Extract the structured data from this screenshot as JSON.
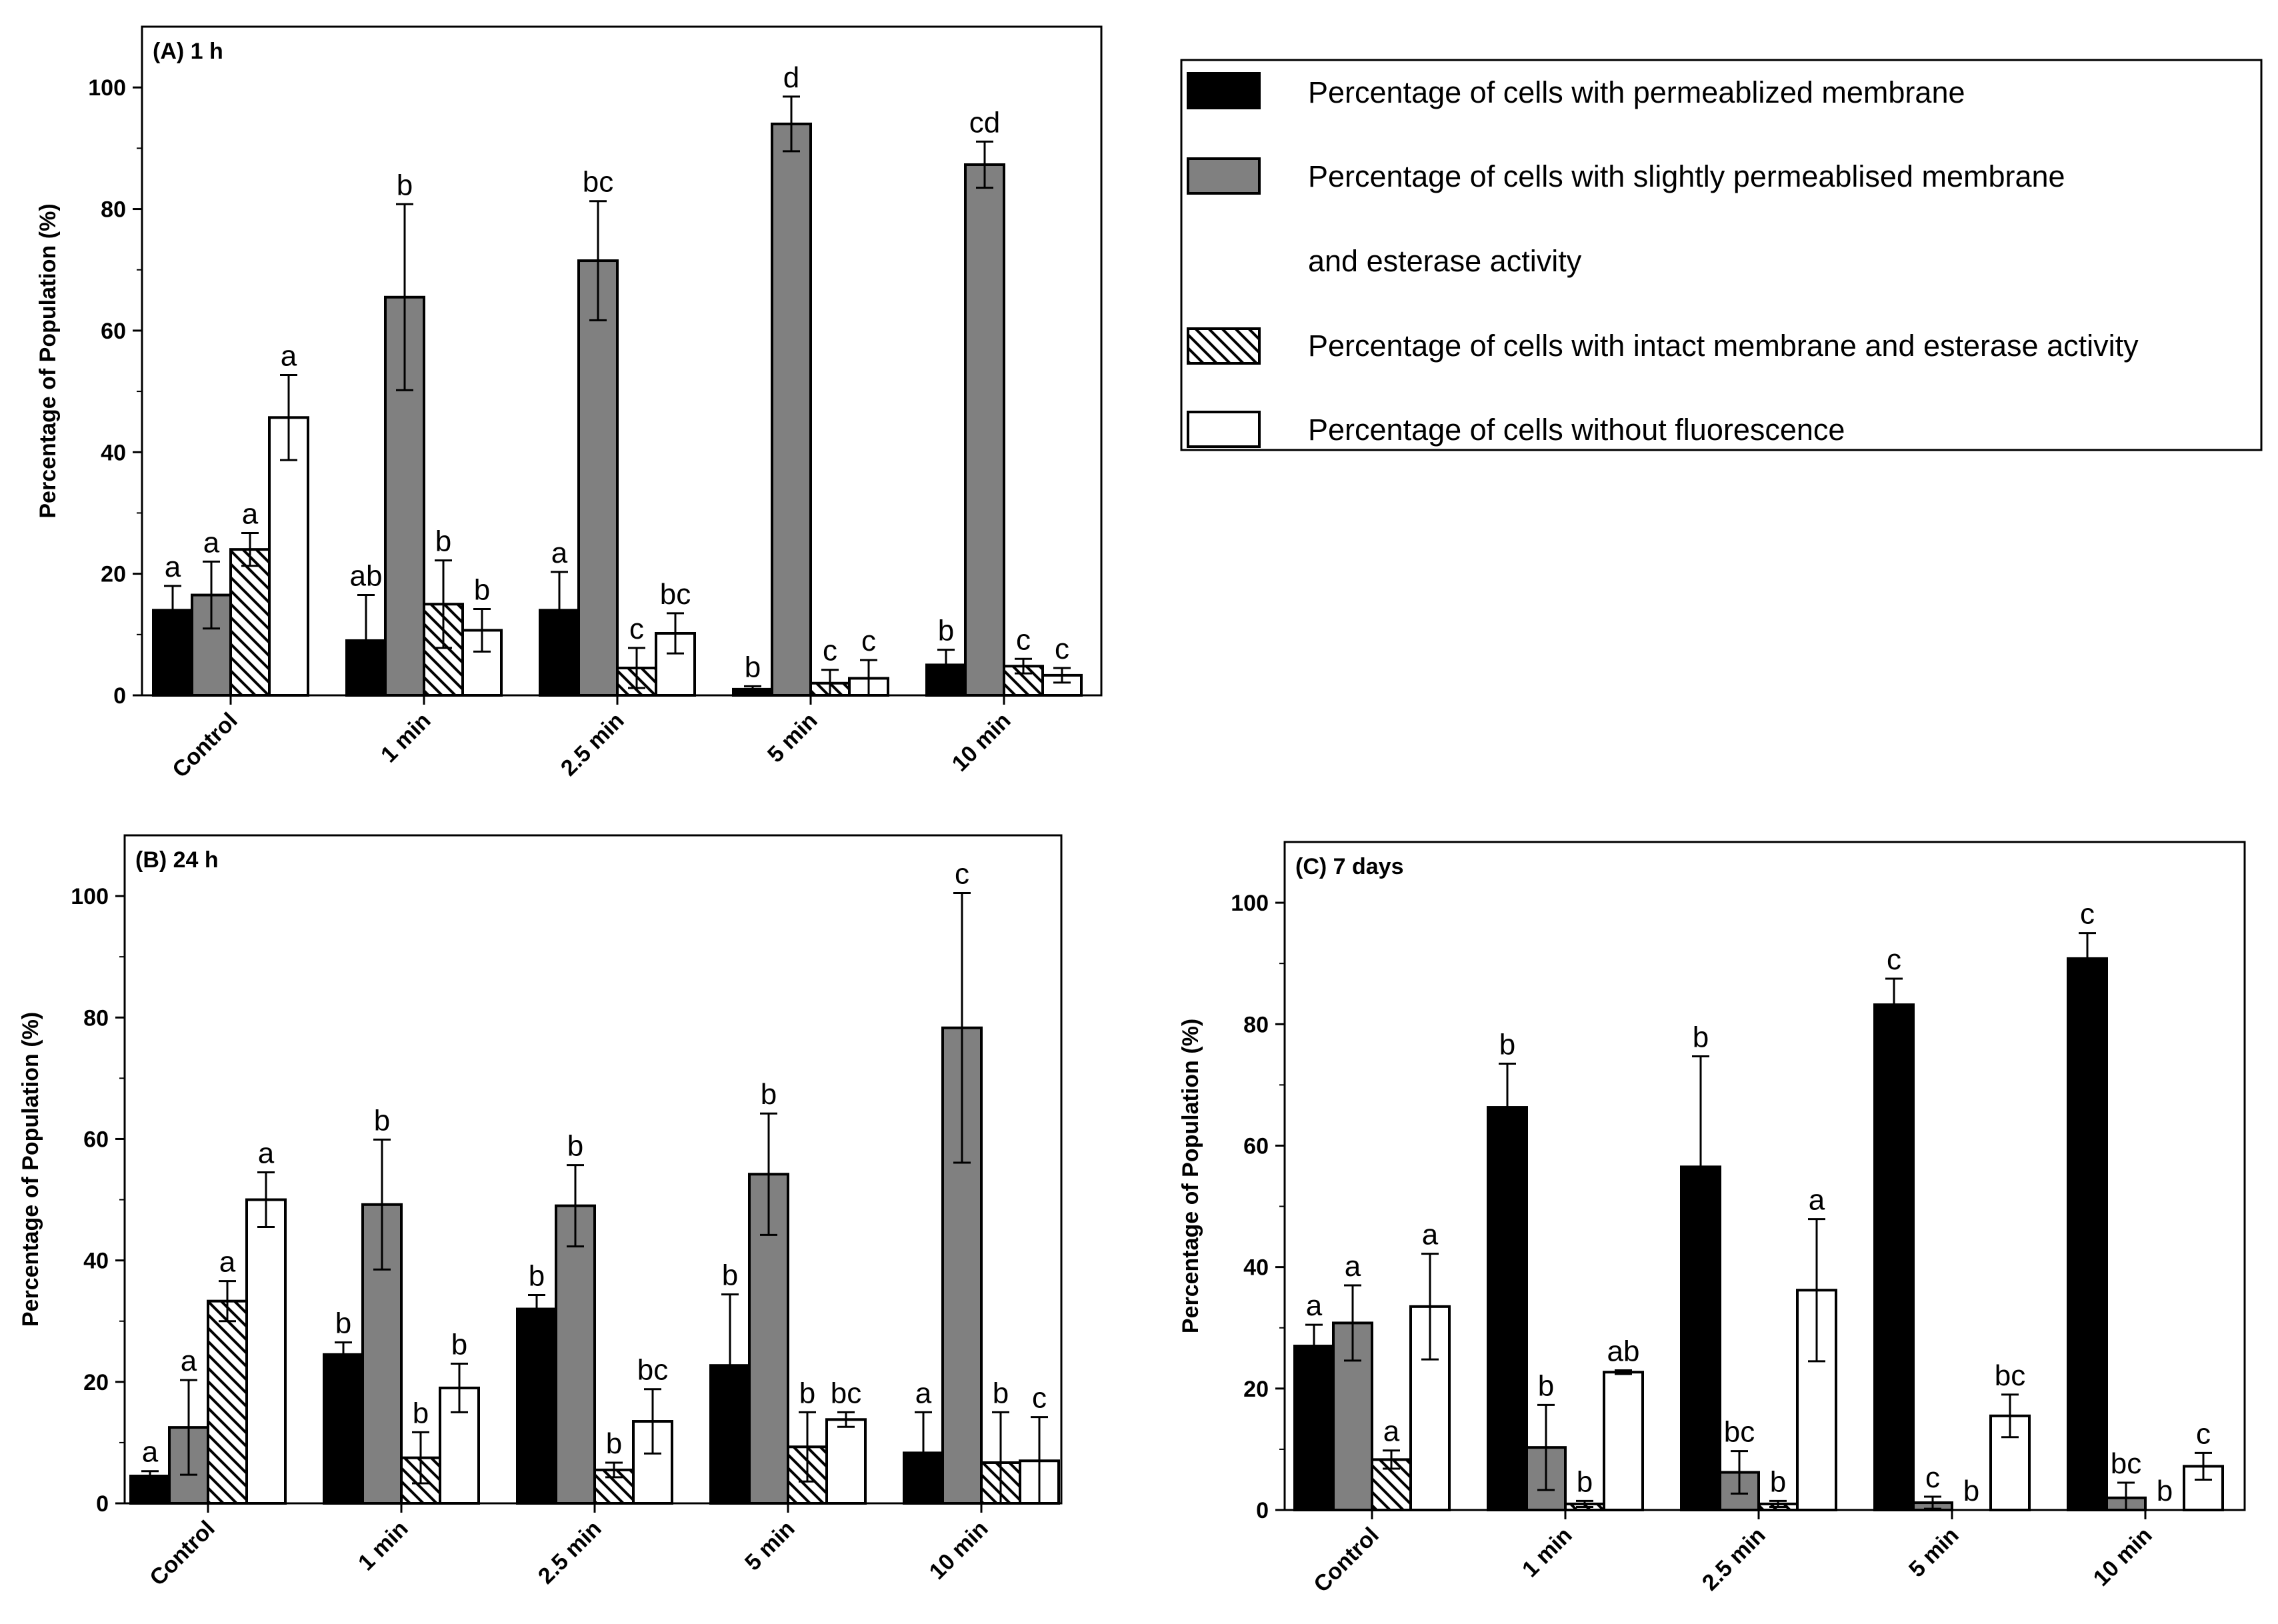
{
  "chart_data": [
    {
      "type": "bar",
      "panel": "A",
      "title": "(A) 1 h",
      "ylabel": "Percentage of Population (%)",
      "ylim": [
        0,
        110
      ],
      "yticks": [
        0,
        20,
        40,
        60,
        80,
        100
      ],
      "categories": [
        "Control",
        "1 min",
        "2.5 min",
        "5 min",
        "10 min"
      ],
      "series": [
        {
          "name": "Percentage of cells with permeablized membrane",
          "values": [
            14,
            9,
            14,
            1,
            5
          ],
          "errors": [
            4,
            7.5,
            6.3,
            0.5,
            2.5
          ],
          "letters": [
            "a",
            "ab",
            "a",
            "b",
            "b"
          ]
        },
        {
          "name": "Percentage of cells with slightly permeablised membrane and esterase activity",
          "values": [
            16.5,
            65.5,
            71.5,
            94,
            87.3
          ],
          "errors": [
            5.5,
            15.3,
            9.8,
            4.5,
            3.8
          ],
          "letters": [
            "a",
            "b",
            "bc",
            "d",
            "cd"
          ]
        },
        {
          "name": "Percentage of cells with intact membrane and esterase activity",
          "values": [
            24,
            15,
            4.5,
            2,
            4.8
          ],
          "errors": [
            2.7,
            7.2,
            3.3,
            2.2,
            1.2
          ],
          "letters": [
            "a",
            "b",
            "c",
            "c",
            "c"
          ]
        },
        {
          "name": "Percentage of cells without fluorescence",
          "values": [
            45.7,
            10.7,
            10.2,
            2.8,
            3.3
          ],
          "errors": [
            7,
            3.5,
            3.3,
            3,
            1.2
          ],
          "letters": [
            "a",
            "b",
            "bc",
            "c",
            "c"
          ]
        }
      ]
    },
    {
      "type": "bar",
      "panel": "B",
      "title": "(B) 24 h",
      "ylabel": "Percentage of Population (%)",
      "ylim": [
        0,
        110
      ],
      "yticks": [
        0,
        20,
        40,
        60,
        80,
        100
      ],
      "categories": [
        "Control",
        "1 min",
        "2.5 min",
        "5 min",
        "10 min"
      ],
      "series": [
        {
          "name": "Percentage of cells with permeablized membrane",
          "values": [
            4.5,
            24.5,
            32,
            22.7,
            8.3
          ],
          "errors": [
            0.8,
            2,
            2.3,
            11.7,
            6.7
          ],
          "letters": [
            "a",
            "b",
            "b",
            "b",
            "a"
          ]
        },
        {
          "name": "Percentage of cells with slightly permeablised membrane and esterase activity",
          "values": [
            12.5,
            49.2,
            49,
            54.2,
            78.3
          ],
          "errors": [
            7.8,
            10.7,
            6.7,
            10,
            22.2
          ],
          "letters": [
            "a",
            "b",
            "b",
            "b",
            "c"
          ]
        },
        {
          "name": "Percentage of cells with intact membrane and esterase activity",
          "values": [
            33.3,
            7.5,
            5.5,
            9.3,
            6.7
          ],
          "errors": [
            3.3,
            4.2,
            1.2,
            5.7,
            8.3
          ],
          "letters": [
            "a",
            "b",
            "b",
            "b",
            "b"
          ]
        },
        {
          "name": "Percentage of cells without fluorescence",
          "values": [
            50,
            19,
            13.5,
            13.8,
            7
          ],
          "errors": [
            4.5,
            4,
            5.3,
            1.2,
            7.2
          ],
          "letters": [
            "a",
            "b",
            "bc",
            "bc",
            "c"
          ]
        }
      ]
    },
    {
      "type": "bar",
      "panel": "C",
      "title": "(C) 7 days",
      "ylabel": "Percentage of Population (%)",
      "ylim": [
        0,
        110
      ],
      "yticks": [
        0,
        20,
        40,
        60,
        80,
        100
      ],
      "categories": [
        "Control",
        "1 min",
        "2.5 min",
        "5 min",
        "10 min"
      ],
      "series": [
        {
          "name": "Percentage of cells with permeablized membrane",
          "values": [
            27,
            66.3,
            56.5,
            83.2,
            90.8
          ],
          "errors": [
            3.5,
            7.2,
            18.2,
            4.3,
            4.2
          ],
          "letters": [
            "a",
            "b",
            "b",
            "c",
            "c"
          ]
        },
        {
          "name": "Percentage of cells with slightly permeablised membrane and esterase activity",
          "values": [
            30.8,
            10.3,
            6.2,
            1.2,
            2
          ],
          "errors": [
            6.2,
            7,
            3.5,
            1,
            2.5
          ],
          "letters": [
            "a",
            "b",
            "bc",
            "c",
            "bc"
          ]
        },
        {
          "name": "Percentage of cells with intact membrane and esterase activity",
          "values": [
            8.3,
            1,
            1,
            0,
            0
          ],
          "errors": [
            1.5,
            0.5,
            0.5,
            0,
            0
          ],
          "letters": [
            "a",
            "b",
            "b",
            "b",
            "b"
          ]
        },
        {
          "name": "Percentage of cells without fluorescence",
          "values": [
            33.5,
            22.7,
            36.2,
            15.5,
            7.2
          ],
          "errors": [
            8.7,
            0.3,
            11.7,
            3.5,
            2.2
          ],
          "letters": [
            "a",
            "ab",
            "a",
            "bc",
            "c"
          ]
        }
      ]
    }
  ],
  "legend": {
    "items": [
      {
        "label_lines": [
          "Percentage of cells with permeablized membrane"
        ],
        "fill": "#000000",
        "pattern": "solid"
      },
      {
        "label_lines": [
          "Percentage of cells with slightly permeablised membrane",
          "and esterase activity"
        ],
        "fill": "#808080",
        "pattern": "solid"
      },
      {
        "label_lines": [
          "Percentage of cells with intact membrane and esterase activity"
        ],
        "fill": "#ffffff",
        "pattern": "diagonal-hatch"
      },
      {
        "label_lines": [
          "Percentage of cells without fluorescence"
        ],
        "fill": "#ffffff",
        "pattern": "none"
      }
    ]
  },
  "colors": {
    "black_bar": "#000000",
    "gray_bar": "#808080",
    "white_bar": "#ffffff",
    "axis": "#000000"
  }
}
